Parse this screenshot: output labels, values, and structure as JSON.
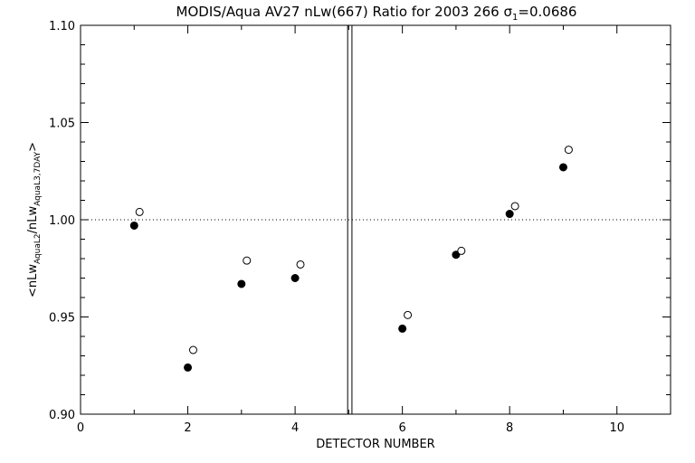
{
  "chart_data": {
    "type": "scatter",
    "title": "MODIS/Aqua AV27 nLw(667) Ratio for 2003 266 σ1=0.0686",
    "title_parts": {
      "prefix": "MODIS/Aqua AV27 nLw(667) Ratio for 2003 266 ",
      "sigma": "σ",
      "sigma_sub": "1",
      "suffix": "=0.0686"
    },
    "xlabel": "DETECTOR NUMBER",
    "ylabel_parts": {
      "p1": "<nLw",
      "s1": "AquaL2",
      "p2": "/nLw",
      "s2": "AquaL3,7DAY",
      "p3": ">"
    },
    "xlim": [
      0,
      11
    ],
    "ylim": [
      0.9,
      1.1
    ],
    "x_ticks": [
      0,
      2,
      4,
      6,
      8,
      10
    ],
    "x_tick_labels": [
      "0",
      "2",
      "4",
      "6",
      "8",
      "10"
    ],
    "y_ticks": [
      0.9,
      0.95,
      1.0,
      1.05,
      1.1
    ],
    "y_tick_labels": [
      "0.90",
      "0.95",
      "1.00",
      "1.05",
      "1.10"
    ],
    "reference_line_y": 1.0,
    "divider_x": [
      4.98,
      5.06
    ],
    "grid": false,
    "series": [
      {
        "marker": "filled-circle",
        "color": "#000000",
        "x": [
          1,
          2,
          3,
          4,
          6,
          7,
          8,
          9
        ],
        "y": [
          0.997,
          0.924,
          0.967,
          0.97,
          0.944,
          0.982,
          1.003,
          1.027
        ]
      },
      {
        "marker": "open-circle",
        "color": "#000000",
        "x": [
          1.1,
          2.1,
          3.1,
          4.1,
          6.1,
          7.1,
          8.1,
          9.1
        ],
        "y": [
          1.004,
          0.933,
          0.979,
          0.977,
          0.951,
          0.984,
          1.007,
          1.036
        ]
      }
    ]
  }
}
